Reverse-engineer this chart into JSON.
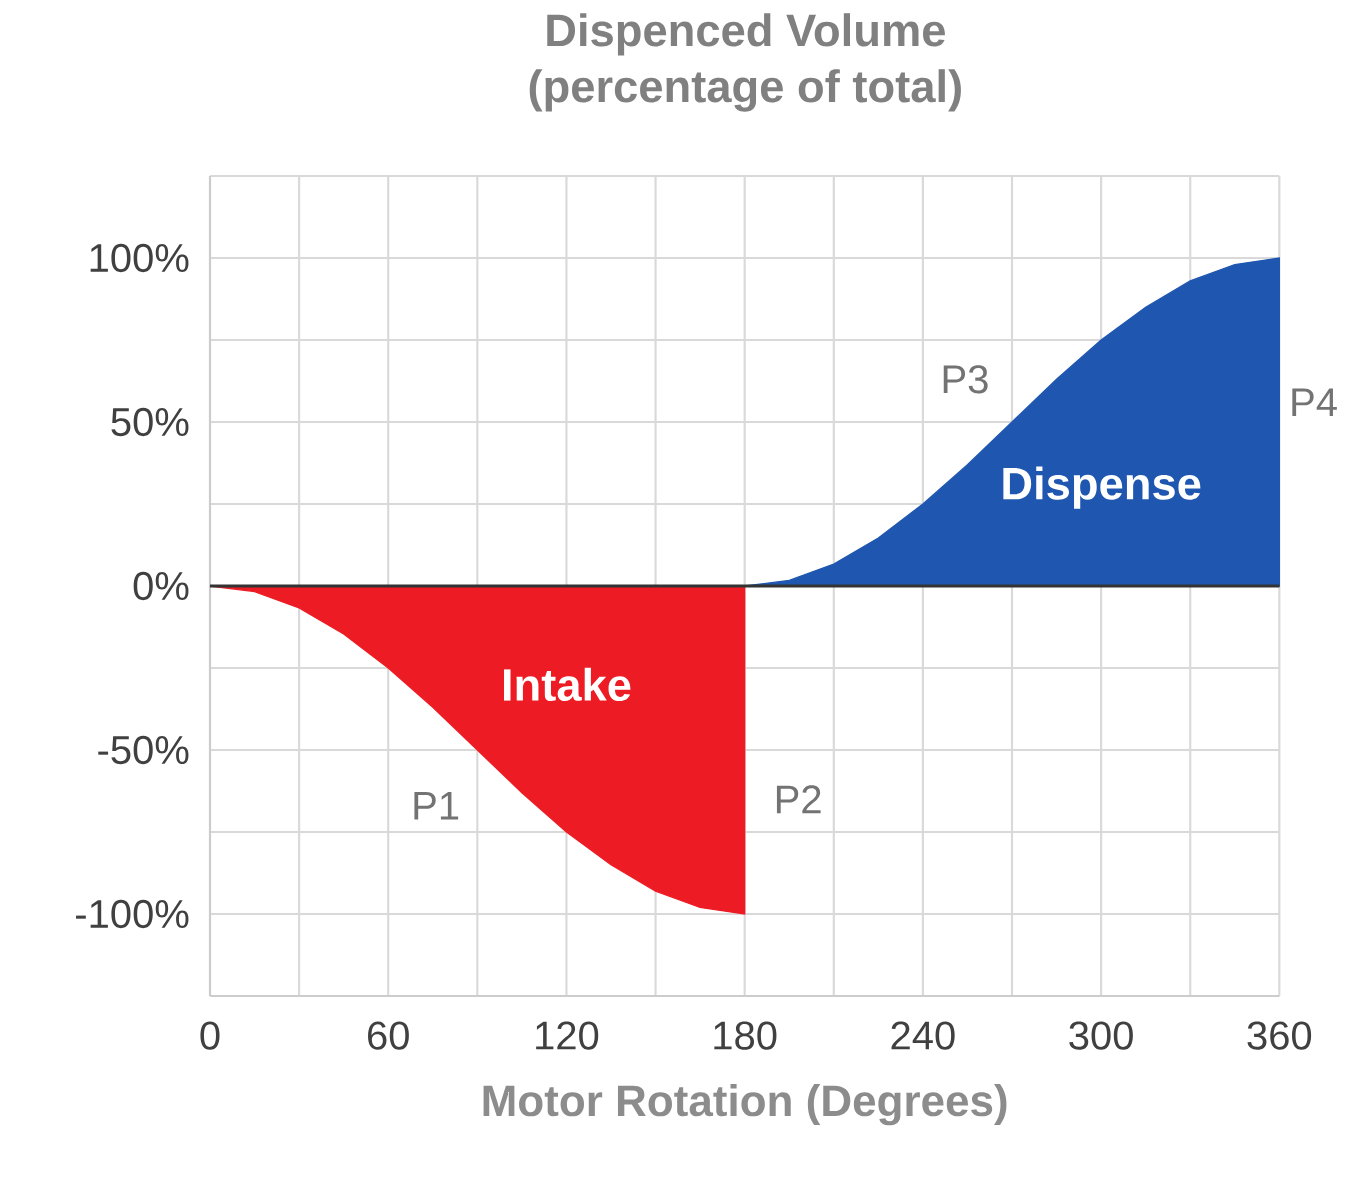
{
  "chart_data": {
    "type": "area",
    "title": "Dispenced Volume\n(percentage of total)",
    "xlabel": "Motor Rotation (Degrees)",
    "xlim": [
      0,
      360
    ],
    "ylim": [
      -125,
      125
    ],
    "xticks": [
      0,
      {
        "value": 30,
        "label": null
      },
      60,
      {
        "value": 90,
        "label": null
      },
      120,
      {
        "value": 150,
        "label": null
      },
      180,
      {
        "value": 210,
        "label": null
      },
      240,
      {
        "value": 270,
        "label": null
      },
      300,
      {
        "value": 330,
        "label": null
      },
      360
    ],
    "yticks": [
      {
        "value": -125,
        "label": null
      },
      {
        "value": -100,
        "label": "-100%"
      },
      {
        "value": -75,
        "label": null
      },
      {
        "value": -50,
        "label": "-50%"
      },
      {
        "value": -25,
        "label": null
      },
      {
        "value": 0,
        "label": "0%"
      },
      {
        "value": 25,
        "label": null
      },
      {
        "value": 50,
        "label": "50%"
      },
      {
        "value": 75,
        "label": null
      },
      {
        "value": 100,
        "label": "100%"
      },
      {
        "value": 125,
        "label": null
      }
    ],
    "grid": true,
    "series": [
      {
        "name": "Intake",
        "color": "#ed1c24",
        "x": [
          0,
          15,
          30,
          45,
          60,
          75,
          90,
          105,
          120,
          135,
          150,
          165,
          180
        ],
        "values": [
          0,
          -1.7,
          -6.7,
          -14.6,
          -25,
          -37,
          -50,
          -63,
          -75,
          -85,
          -93,
          -98,
          -100
        ]
      },
      {
        "name": "Dispense",
        "color": "#1f57b0",
        "x": [
          180,
          195,
          210,
          225,
          240,
          255,
          270,
          285,
          300,
          315,
          330,
          345,
          360
        ],
        "values": [
          0,
          1.7,
          6.7,
          14.6,
          25,
          37,
          50,
          63,
          75,
          85,
          93,
          98,
          100
        ]
      }
    ],
    "annotations": [
      "P1",
      "P2",
      "P3",
      "P4"
    ]
  }
}
